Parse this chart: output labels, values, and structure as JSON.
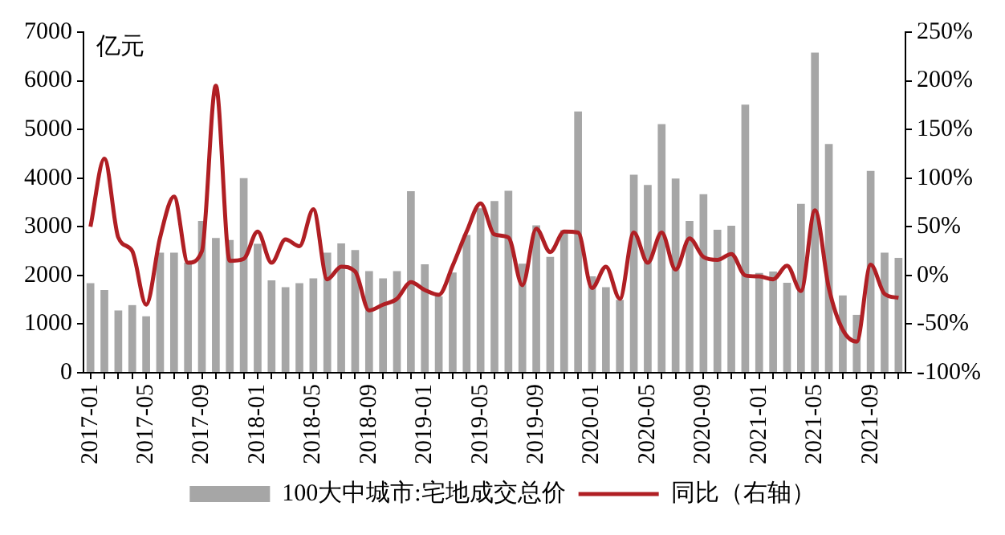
{
  "chart_data": {
    "type": "bar",
    "ylabel": "亿元",
    "categories": [
      "2017-01",
      null,
      null,
      null,
      "2017-05",
      null,
      null,
      null,
      "2017-09",
      null,
      null,
      null,
      "2018-01",
      null,
      null,
      null,
      "2018-05",
      null,
      null,
      null,
      "2018-09",
      null,
      null,
      null,
      "2019-01",
      null,
      null,
      null,
      "2019-05",
      null,
      null,
      null,
      "2019-09",
      null,
      null,
      null,
      "2020-01",
      null,
      null,
      null,
      "2020-05",
      null,
      null,
      null,
      "2020-09",
      null,
      null,
      null,
      "2021-01",
      null,
      null,
      null,
      "2021-05",
      null,
      null,
      null,
      "2021-09",
      null,
      null
    ],
    "series": [
      {
        "name": "100大中城市:宅地成交总价",
        "color": "#a6a6a6",
        "values": [
          1840,
          1700,
          1280,
          1390,
          1160,
          2470,
          2470,
          2260,
          3120,
          2770,
          2730,
          4000,
          2650,
          1900,
          1760,
          1840,
          1940,
          2470,
          2660,
          2520,
          2090,
          1940,
          2090,
          3730,
          2230,
          1570,
          2060,
          2830,
          3380,
          3530,
          3740,
          2240,
          3030,
          2380,
          2930,
          5370,
          1980,
          1760,
          1500,
          4070,
          3860,
          5110,
          3990,
          3120,
          3670,
          2940,
          3020,
          5510,
          2050,
          2080,
          1850,
          3470,
          6580,
          4700,
          1590,
          1190,
          4150,
          2470,
          2360
        ]
      },
      {
        "name": "同比（右轴）",
        "type": "line",
        "axis": "y2",
        "color": "#b01f24",
        "values": [
          50,
          120,
          39,
          25,
          -30,
          39,
          81,
          13,
          25,
          195,
          15,
          17,
          45,
          13,
          37,
          30,
          68,
          -4,
          9,
          4,
          -36,
          -30,
          -24,
          -7,
          -15,
          -20,
          10,
          45,
          74,
          42,
          39,
          -10,
          48,
          24,
          45,
          44,
          -13,
          9,
          -24,
          44,
          13,
          44,
          6,
          38,
          19,
          16,
          22,
          0,
          -1,
          -4,
          10,
          -16,
          67,
          -13,
          -56,
          -68,
          11,
          -19,
          -23
        ]
      }
    ],
    "ylim": [
      0,
      7000
    ],
    "yticks": [
      0,
      1000,
      2000,
      3000,
      4000,
      5000,
      6000,
      7000
    ],
    "y2lim": [
      -100,
      250
    ],
    "y2ticks": [
      {
        "value": -100,
        "label": "-100%"
      },
      {
        "value": -50,
        "label": "-50%"
      },
      {
        "value": 0,
        "label": "0%"
      },
      {
        "value": 50,
        "label": "50%"
      },
      {
        "value": 100,
        "label": "100%"
      },
      {
        "value": 150,
        "label": "150%"
      },
      {
        "value": 200,
        "label": "200%"
      },
      {
        "value": 250,
        "label": "250%"
      }
    ],
    "grid": false,
    "legend": "bottom"
  }
}
